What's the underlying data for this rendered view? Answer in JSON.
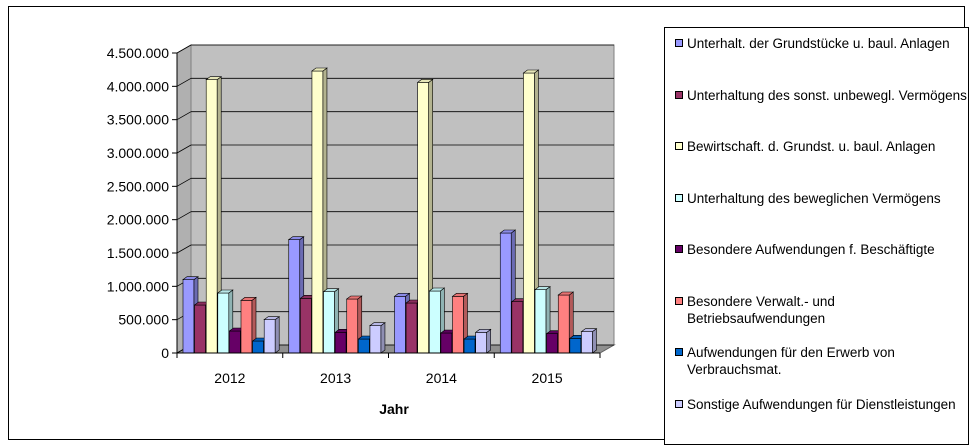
{
  "chart_data": {
    "type": "bar",
    "title": "",
    "xlabel": "Jahr",
    "ylabel": "",
    "categories": [
      "2012",
      "2013",
      "2014",
      "2015"
    ],
    "y_ticks": [
      "0",
      "500.000",
      "1.000.000",
      "1.500.000",
      "2.000.000",
      "2.500.000",
      "3.000.000",
      "3.500.000",
      "4.000.000",
      "4.500.000"
    ],
    "ylim": [
      0,
      4500000
    ],
    "grid": true,
    "legend_position": "right",
    "series": [
      {
        "name": "Unterhalt. der Grundstücke u. baul. Anlagen",
        "color": "#9999ff",
        "values": [
          1100000,
          1700000,
          850000,
          1800000
        ]
      },
      {
        "name": "Unterhaltung des sonst. unbewegl. Vermögens",
        "color": "#993366",
        "values": [
          720000,
          820000,
          750000,
          770000
        ]
      },
      {
        "name": "Bewirtschaft. d. Grundst. u. baul. Anlagen",
        "color": "#ffffcc",
        "values": [
          4100000,
          4230000,
          4060000,
          4200000
        ]
      },
      {
        "name": "Unterhaltung des beweglichen Vermögens",
        "color": "#ccffff",
        "values": [
          900000,
          920000,
          930000,
          950000
        ]
      },
      {
        "name": "Besondere Aufwendungen f. Beschäftigte",
        "color": "#660066",
        "values": [
          330000,
          310000,
          300000,
          290000
        ]
      },
      {
        "name": "Besondere Verwalt.- und Betriebsaufwendungen",
        "color": "#ff8080",
        "values": [
          790000,
          810000,
          850000,
          870000
        ]
      },
      {
        "name": "Aufwendungen für den Erwerb von Verbrauchsmat.",
        "color": "#0066cc",
        "values": [
          180000,
          210000,
          210000,
          220000
        ]
      },
      {
        "name": "Sonstige Aufwendungen für Dienstleistungen",
        "color": "#ccccff",
        "values": [
          500000,
          410000,
          310000,
          320000
        ]
      }
    ]
  }
}
